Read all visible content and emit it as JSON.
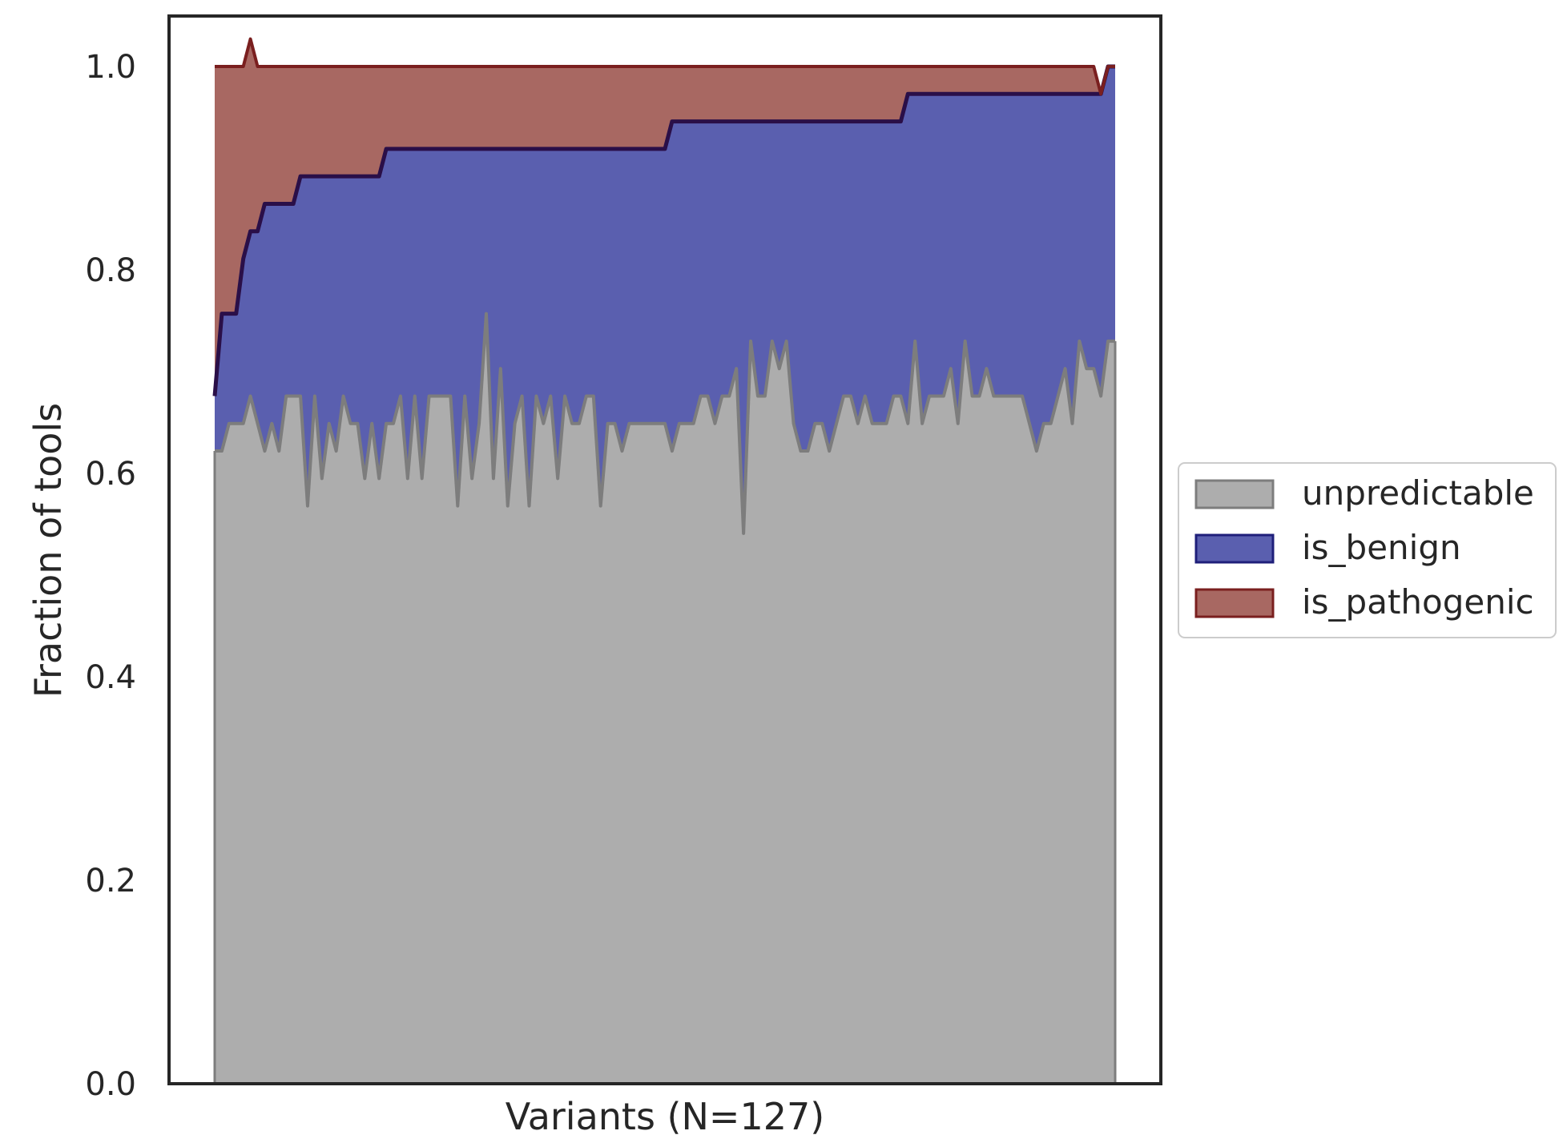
{
  "chart_data": {
    "type": "area",
    "stacked": true,
    "xlabel": "Variants (N=127)",
    "ylabel": "Fraction of tools",
    "ylim": [
      0.0,
      1.0
    ],
    "yticks": [
      "0.0",
      "0.2",
      "0.4",
      "0.6",
      "0.8",
      "1.0"
    ],
    "xticks": [],
    "grid": false,
    "legend_position": "center-right outside",
    "colors": {
      "unpredictable_fill": "#adadad",
      "unpredictable_line": "#7d7d7d",
      "is_benign_fill": "#5a5faf",
      "is_benign_line": "#1f1f7a",
      "is_pathogenic_fill": "#a86862",
      "is_pathogenic_line": "#7a1f1f",
      "top_line": "#2a0f48"
    },
    "series": [
      {
        "name": "unpredictable",
        "key": "unpredictable",
        "values": [
          0.622,
          0.622,
          0.649,
          0.649,
          0.649,
          0.676,
          0.649,
          0.622,
          0.649,
          0.622,
          0.676,
          0.676,
          0.676,
          0.568,
          0.676,
          0.595,
          0.649,
          0.622,
          0.676,
          0.649,
          0.649,
          0.595,
          0.649,
          0.595,
          0.649,
          0.649,
          0.676,
          0.595,
          0.676,
          0.595,
          0.676,
          0.676,
          0.676,
          0.676,
          0.568,
          0.676,
          0.595,
          0.649,
          0.757,
          0.595,
          0.703,
          0.568,
          0.649,
          0.676,
          0.568,
          0.676,
          0.649,
          0.676,
          0.595,
          0.676,
          0.649,
          0.649,
          0.676,
          0.676,
          0.568,
          0.649,
          0.649,
          0.622,
          0.649,
          0.649,
          0.649,
          0.649,
          0.649,
          0.649,
          0.622,
          0.649,
          0.649,
          0.649,
          0.676,
          0.676,
          0.649,
          0.676,
          0.676,
          0.703,
          0.541,
          0.73,
          0.676,
          0.676,
          0.73,
          0.703,
          0.73,
          0.649,
          0.622,
          0.622,
          0.649,
          0.649,
          0.622,
          0.649,
          0.676,
          0.676,
          0.649,
          0.676,
          0.649,
          0.649,
          0.649,
          0.676,
          0.676,
          0.649,
          0.73,
          0.649,
          0.676,
          0.676,
          0.676,
          0.703,
          0.649,
          0.73,
          0.676,
          0.676,
          0.703,
          0.676,
          0.676,
          0.676,
          0.676,
          0.676,
          0.649,
          0.622,
          0.649,
          0.649,
          0.676,
          0.703,
          0.649,
          0.73,
          0.703,
          0.703,
          0.676,
          0.73,
          0.73
        ]
      },
      {
        "name": "is_benign",
        "key": "is_benign",
        "values": [
          0.054,
          0.135,
          0.108,
          0.108,
          0.162,
          0.162,
          0.189,
          0.243,
          0.216,
          0.243,
          0.189,
          0.189,
          0.216,
          0.324,
          0.216,
          0.297,
          0.243,
          0.27,
          0.216,
          0.243,
          0.243,
          0.297,
          0.243,
          0.297,
          0.27,
          0.27,
          0.243,
          0.324,
          0.243,
          0.324,
          0.243,
          0.243,
          0.243,
          0.243,
          0.351,
          0.243,
          0.324,
          0.27,
          0.162,
          0.324,
          0.216,
          0.351,
          0.27,
          0.243,
          0.351,
          0.243,
          0.27,
          0.243,
          0.324,
          0.243,
          0.27,
          0.27,
          0.243,
          0.243,
          0.351,
          0.27,
          0.27,
          0.297,
          0.27,
          0.27,
          0.27,
          0.27,
          0.27,
          0.27,
          0.324,
          0.297,
          0.297,
          0.297,
          0.27,
          0.27,
          0.297,
          0.27,
          0.27,
          0.243,
          0.405,
          0.216,
          0.27,
          0.27,
          0.216,
          0.243,
          0.216,
          0.297,
          0.324,
          0.324,
          0.297,
          0.297,
          0.324,
          0.297,
          0.27,
          0.27,
          0.297,
          0.27,
          0.297,
          0.297,
          0.297,
          0.27,
          0.27,
          0.324,
          0.243,
          0.324,
          0.297,
          0.297,
          0.297,
          0.27,
          0.324,
          0.243,
          0.297,
          0.297,
          0.27,
          0.297,
          0.297,
          0.297,
          0.297,
          0.297,
          0.324,
          0.351,
          0.324,
          0.324,
          0.297,
          0.27,
          0.324,
          0.243,
          0.27,
          0.27,
          0.297,
          0.27,
          0.27
        ]
      },
      {
        "name": "is_pathogenic",
        "key": "is_pathogenic",
        "values": [
          0.324,
          0.243,
          0.243,
          0.243,
          0.189,
          0.189,
          0.162,
          0.135,
          0.135,
          0.135,
          0.135,
          0.135,
          0.108,
          0.108,
          0.108,
          0.108,
          0.108,
          0.108,
          0.108,
          0.108,
          0.108,
          0.108,
          0.108,
          0.108,
          0.081,
          0.081,
          0.081,
          0.081,
          0.081,
          0.081,
          0.081,
          0.081,
          0.081,
          0.081,
          0.081,
          0.081,
          0.081,
          0.081,
          0.081,
          0.081,
          0.081,
          0.081,
          0.081,
          0.081,
          0.081,
          0.081,
          0.081,
          0.081,
          0.081,
          0.081,
          0.081,
          0.081,
          0.081,
          0.081,
          0.081,
          0.081,
          0.081,
          0.081,
          0.081,
          0.081,
          0.081,
          0.081,
          0.081,
          0.081,
          0.054,
          0.054,
          0.054,
          0.054,
          0.054,
          0.054,
          0.054,
          0.054,
          0.054,
          0.054,
          0.054,
          0.054,
          0.054,
          0.054,
          0.054,
          0.054,
          0.054,
          0.054,
          0.054,
          0.054,
          0.054,
          0.054,
          0.054,
          0.054,
          0.054,
          0.054,
          0.054,
          0.054,
          0.054,
          0.054,
          0.054,
          0.054,
          0.054,
          0.027,
          0.027,
          0.027,
          0.027,
          0.027,
          0.027,
          0.027,
          0.027,
          0.027,
          0.027,
          0.027,
          0.027,
          0.027,
          0.027,
          0.027,
          0.027,
          0.027,
          0.027,
          0.027,
          0.027,
          0.027,
          0.027,
          0.027,
          0.027,
          0.027,
          0.027,
          0.027,
          0.0,
          0.0,
          0.0
        ]
      }
    ]
  }
}
